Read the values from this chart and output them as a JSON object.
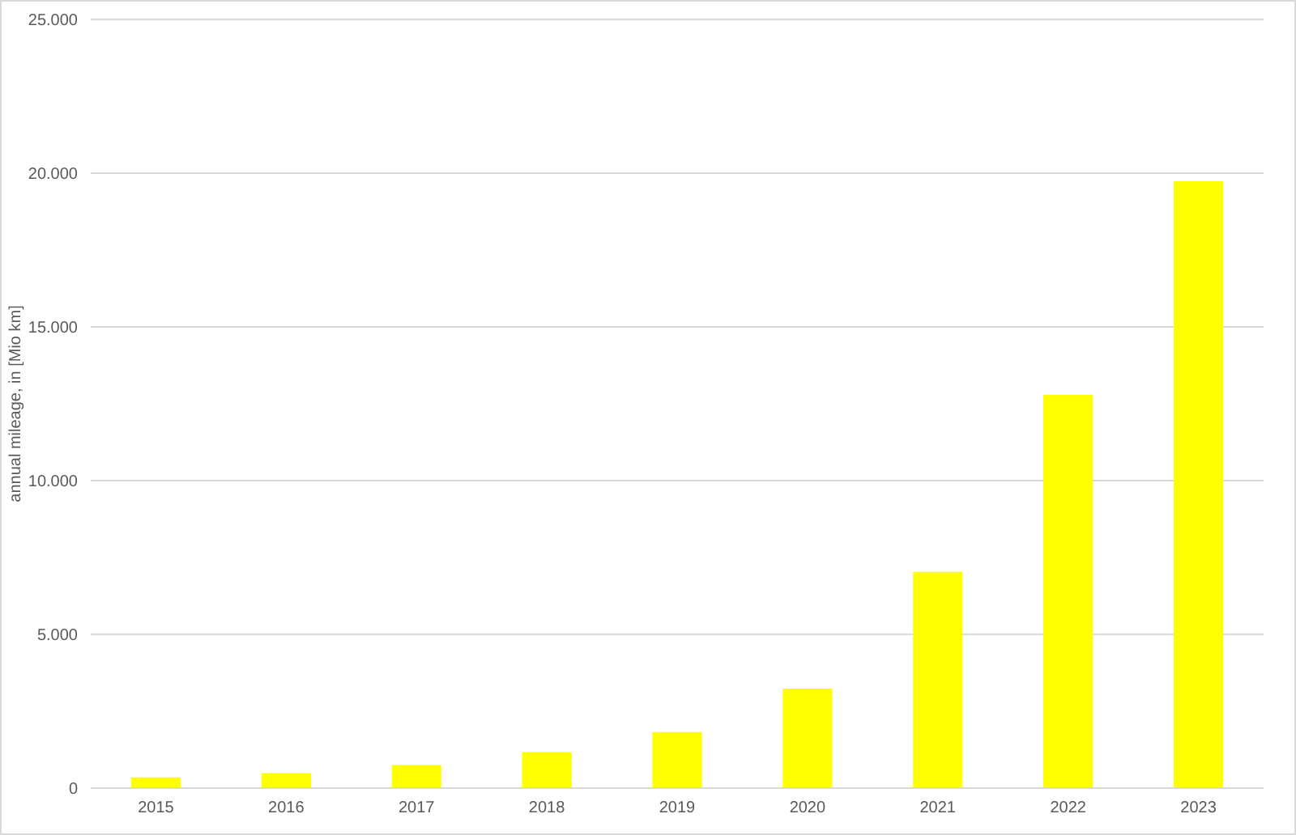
{
  "chart_data": {
    "type": "bar",
    "ylabel": "annual mileage, in [Mio km]",
    "categories": [
      "2015",
      "2016",
      "2017",
      "2018",
      "2019",
      "2020",
      "2021",
      "2022",
      "2023"
    ],
    "values": [
      350,
      490,
      750,
      1170,
      1820,
      3240,
      7030,
      12790,
      19740
    ],
    "color": "#ffff00",
    "ylim": [
      0,
      25000
    ],
    "yticks": [
      0,
      {
        "value": 5000,
        "label": "5.000"
      },
      {
        "value": 10000,
        "label": "10.000"
      },
      {
        "value": 15000,
        "label": "15.000"
      },
      {
        "value": 20000,
        "label": "20.000"
      },
      {
        "value": 25000,
        "label": "25.000"
      }
    ],
    "grid": "y"
  }
}
